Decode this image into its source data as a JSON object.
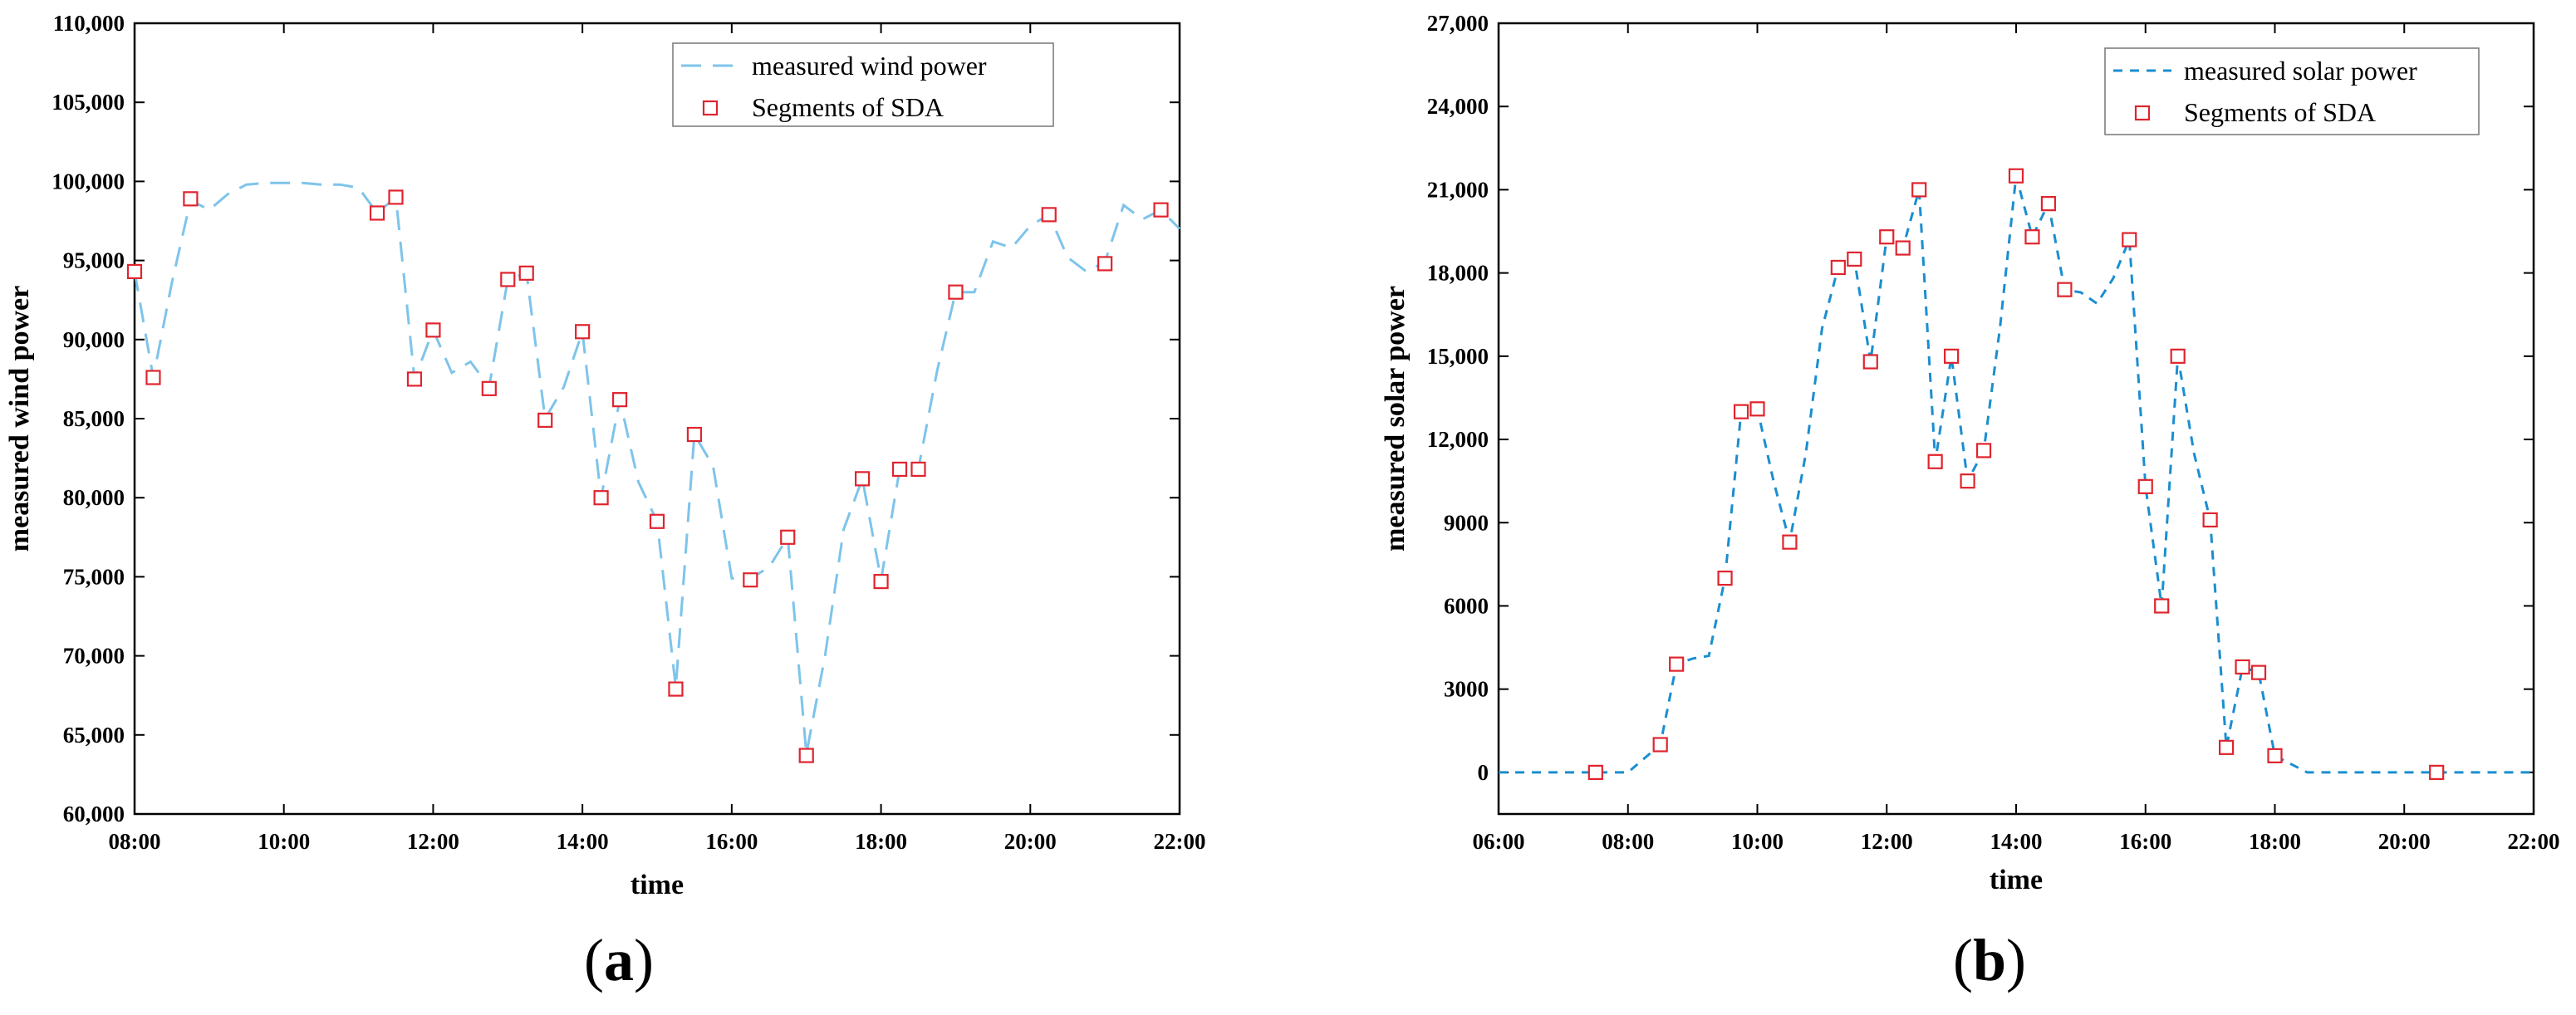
{
  "chart_data": [
    {
      "type": "line",
      "panel": "a",
      "caption_letter": "a",
      "caption_open": "(",
      "caption_close": ")",
      "title": "",
      "xlabel": "time",
      "ylabel": "measured wind power",
      "x_unit": "hours",
      "xlim": [
        8,
        22
      ],
      "ylim": [
        60000,
        110000
      ],
      "x_ticks": [
        8,
        10,
        12,
        14,
        16,
        18,
        20,
        22
      ],
      "x_tick_labels": [
        "08:00",
        "10:00",
        "12:00",
        "14:00",
        "16:00",
        "18:00",
        "20:00",
        "22:00"
      ],
      "y_ticks": [
        60000,
        65000,
        70000,
        75000,
        80000,
        85000,
        90000,
        95000,
        100000,
        105000,
        110000
      ],
      "y_tick_labels": [
        "60,000",
        "65,000",
        "70,000",
        "75,000",
        "80,000",
        "85,000",
        "90,000",
        "95,000",
        "100,000",
        "105,000",
        "110,000"
      ],
      "grid": false,
      "legend_position": "top-right",
      "line_color": "#7ec4ea",
      "marker_color": "#e0242e",
      "series": [
        {
          "name": "measured wind power",
          "style": "dashed-line",
          "x": [
            8.0,
            8.25,
            8.5,
            8.75,
            9.0,
            9.25,
            9.5,
            9.75,
            10.0,
            10.25,
            10.5,
            10.75,
            11.0,
            11.25,
            11.5,
            11.75,
            12.0,
            12.25,
            12.5,
            12.75,
            13.0,
            13.25,
            13.5,
            13.75,
            14.0,
            14.25,
            14.5,
            14.75,
            15.0,
            15.25,
            15.5,
            15.75,
            16.0,
            16.25,
            16.5,
            16.75,
            17.0,
            17.25,
            17.5,
            17.75,
            18.0,
            18.25,
            18.5,
            18.75,
            19.0,
            19.25,
            19.5,
            19.75,
            20.0,
            20.25,
            20.5,
            20.75,
            21.0,
            21.25,
            21.5,
            21.75,
            22.0
          ],
          "values": [
            94300,
            87600,
            93600,
            98800,
            98200,
            99200,
            99800,
            99900,
            99900,
            99900,
            99800,
            99800,
            99600,
            98000,
            99000,
            87500,
            90600,
            87900,
            88600,
            87000,
            93800,
            94200,
            85000,
            87000,
            90500,
            80000,
            86200,
            81000,
            78500,
            68000,
            84000,
            82000,
            74900,
            74900,
            75600,
            77500,
            63800,
            70000,
            78000,
            81200,
            74800,
            81800,
            81800,
            88000,
            93000,
            93000,
            96200,
            95800,
            97200,
            97900,
            95200,
            94300,
            94900,
            98500,
            97600,
            98200,
            97000
          ]
        },
        {
          "name": "Segments of SDA",
          "style": "square-markers",
          "x": [
            8.0,
            8.25,
            8.75,
            11.25,
            11.5,
            11.75,
            12.0,
            12.75,
            13.0,
            13.25,
            13.5,
            14.0,
            14.25,
            14.5,
            15.0,
            15.25,
            15.5,
            16.25,
            16.75,
            17.0,
            17.75,
            18.0,
            18.25,
            18.5,
            19.0,
            20.25,
            21.0,
            21.75
          ],
          "values": [
            94300,
            87600,
            98900,
            98000,
            99000,
            87500,
            90600,
            86900,
            93800,
            94200,
            84900,
            90500,
            80000,
            86200,
            78500,
            67900,
            84000,
            74800,
            77500,
            63700,
            81200,
            74700,
            81800,
            81800,
            93000,
            97900,
            94800,
            98200
          ]
        }
      ]
    },
    {
      "type": "line",
      "panel": "b",
      "caption_letter": "b",
      "caption_open": "(",
      "caption_close": ")",
      "title": "",
      "xlabel": "time",
      "ylabel": "measured solar power",
      "x_unit": "hours",
      "xlim": [
        6,
        22
      ],
      "ylim": [
        -1500,
        27000
      ],
      "x_ticks": [
        6,
        8,
        10,
        12,
        14,
        16,
        18,
        20,
        22
      ],
      "x_tick_labels": [
        "06:00",
        "08:00",
        "10:00",
        "12:00",
        "14:00",
        "16:00",
        "18:00",
        "20:00",
        "22:00"
      ],
      "y_ticks": [
        0,
        3000,
        6000,
        9000,
        12000,
        15000,
        18000,
        21000,
        24000,
        27000
      ],
      "y_tick_labels": [
        "0",
        "3000",
        "6000",
        "9000",
        "12,000",
        "15,000",
        "18,000",
        "21,000",
        "24,000",
        "27,000"
      ],
      "grid": false,
      "legend_position": "top-right",
      "line_color": "#1a8ed0",
      "marker_color": "#e0242e",
      "series": [
        {
          "name": "measured solar power",
          "style": "dashed-line",
          "x": [
            6.0,
            7.5,
            8.0,
            8.5,
            8.75,
            9.0,
            9.25,
            9.5,
            9.75,
            10.0,
            10.25,
            10.5,
            10.75,
            11.0,
            11.25,
            11.5,
            11.75,
            12.0,
            12.25,
            12.5,
            12.75,
            13.0,
            13.25,
            13.5,
            13.75,
            14.0,
            14.25,
            14.5,
            14.75,
            15.0,
            15.25,
            15.5,
            15.75,
            16.0,
            16.25,
            16.5,
            16.75,
            17.0,
            17.25,
            17.5,
            17.75,
            18.0,
            18.5,
            20.5,
            22.0
          ],
          "values": [
            0,
            0,
            0,
            1000,
            3900,
            4100,
            4200,
            7000,
            13000,
            13100,
            10500,
            8300,
            11500,
            16000,
            18200,
            18500,
            14800,
            19300,
            18900,
            21000,
            11200,
            15000,
            10500,
            11600,
            16000,
            21500,
            19300,
            20500,
            17400,
            17300,
            16900,
            17800,
            19200,
            10300,
            6000,
            15000,
            11500,
            9100,
            900,
            3800,
            3600,
            600,
            0,
            0,
            0
          ]
        },
        {
          "name": "Segments of SDA",
          "style": "square-markers",
          "x": [
            7.5,
            8.5,
            8.75,
            9.5,
            9.75,
            10.0,
            10.5,
            11.25,
            11.5,
            11.75,
            12.0,
            12.25,
            12.5,
            12.75,
            13.0,
            13.25,
            13.5,
            14.0,
            14.25,
            14.5,
            14.75,
            15.75,
            16.0,
            16.25,
            16.5,
            17.0,
            17.25,
            17.5,
            17.75,
            18.0,
            20.5
          ],
          "values": [
            0,
            1000,
            3900,
            7000,
            13000,
            13100,
            8300,
            18200,
            18500,
            14800,
            19300,
            18900,
            21000,
            11200,
            15000,
            10500,
            11600,
            21500,
            19300,
            20500,
            17400,
            19200,
            10300,
            6000,
            15000,
            9100,
            900,
            3800,
            3600,
            600,
            0
          ]
        }
      ]
    }
  ]
}
